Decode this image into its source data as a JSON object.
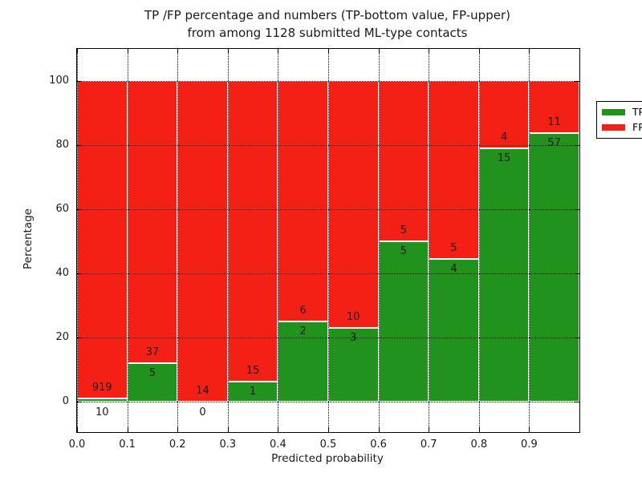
{
  "chart_data": {
    "type": "bar",
    "stacked": true,
    "title_line1": "TP /FP percentage and numbers (TP-bottom value, FP-upper)",
    "title_line2": "from among 1128 submitted ML-type contacts",
    "xlabel": "Predicted probability",
    "ylabel": "Percentage",
    "x_ticks": [
      "0.0",
      "0.1",
      "0.2",
      "0.3",
      "0.4",
      "0.5",
      "0.6",
      "0.7",
      "0.8",
      "0.9"
    ],
    "y_ticks": [
      0,
      20,
      40,
      60,
      80,
      100
    ],
    "xlim": [
      0.0,
      1.0
    ],
    "ylim": [
      -9.5,
      110
    ],
    "grid": true,
    "legend_position": "upper right",
    "legend": [
      {
        "label": "TP",
        "color": "#22921e"
      },
      {
        "label": "FP",
        "color": "#f52015"
      }
    ],
    "total_contacts": 1128,
    "bars": [
      {
        "x_start": 0.0,
        "x_end": 0.1,
        "tp": 10,
        "fp": 919
      },
      {
        "x_start": 0.1,
        "x_end": 0.2,
        "tp": 5,
        "fp": 37
      },
      {
        "x_start": 0.2,
        "x_end": 0.3,
        "tp": 0,
        "fp": 14
      },
      {
        "x_start": 0.3,
        "x_end": 0.4,
        "tp": 1,
        "fp": 15
      },
      {
        "x_start": 0.4,
        "x_end": 0.5,
        "tp": 2,
        "fp": 6
      },
      {
        "x_start": 0.5,
        "x_end": 0.6,
        "tp": 3,
        "fp": 10
      },
      {
        "x_start": 0.6,
        "x_end": 0.7,
        "tp": 5,
        "fp": 5
      },
      {
        "x_start": 0.7,
        "x_end": 0.8,
        "tp": 4,
        "fp": 5
      },
      {
        "x_start": 0.8,
        "x_end": 0.9,
        "tp": 15,
        "fp": 4
      },
      {
        "x_start": 0.9,
        "x_end": 1.0,
        "tp": 57,
        "fp": 11
      }
    ],
    "colors": {
      "tp": "#22921e",
      "fp": "#f52015",
      "grid": "#000000",
      "bar_edge": "#ffffff",
      "text": "#1a1a1a"
    }
  }
}
